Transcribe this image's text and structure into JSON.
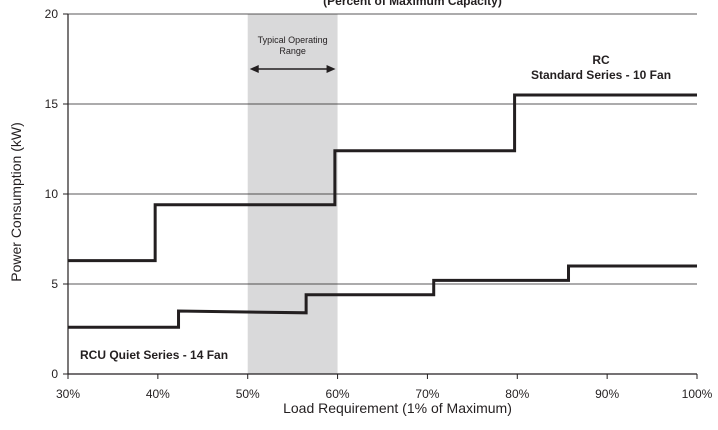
{
  "chart_data": {
    "type": "line",
    "title_partial": "(Percent of Maximum Capacity)",
    "xlabel": "Load Requirement (1% of Maximum)",
    "ylabel": "Power Consumption (kW)",
    "xlim": [
      30,
      100
    ],
    "ylim": [
      0,
      20
    ],
    "x_tick_labels": [
      "30%",
      "40%",
      "50%",
      "60%",
      "70%",
      "80%",
      "90%",
      "100%"
    ],
    "y_tick_labels": [
      "0",
      "5",
      "10",
      "15",
      "20"
    ],
    "grid": "horizontal",
    "shaded_region": {
      "label": "Typical Operating\nRange",
      "x_range": [
        50,
        60
      ],
      "color": "#d9d9da"
    },
    "series": [
      {
        "name": "RC\nStandard Series - 10 Fan",
        "label_position": "top-right",
        "step_points": [
          [
            30,
            6.3
          ],
          [
            39.7,
            6.3
          ],
          [
            39.7,
            9.4
          ],
          [
            59.7,
            9.4
          ],
          [
            59.7,
            12.4
          ],
          [
            79.7,
            12.4
          ],
          [
            79.7,
            15.5
          ],
          [
            100,
            15.5
          ]
        ]
      },
      {
        "name": "RCU Quiet Series - 14 Fan",
        "label_position": "bottom-left",
        "step_points": [
          [
            30,
            2.6
          ],
          [
            42.3,
            2.6
          ],
          [
            42.3,
            3.5
          ],
          [
            56.5,
            3.4
          ],
          [
            56.5,
            4.4
          ],
          [
            70.7,
            4.4
          ],
          [
            70.7,
            5.2
          ],
          [
            85.7,
            5.2
          ],
          [
            85.7,
            6
          ],
          [
            100,
            6
          ]
        ]
      }
    ],
    "colors": {
      "line": "#231f20",
      "grid": "#231f20",
      "shade": "#d9d9da"
    }
  }
}
